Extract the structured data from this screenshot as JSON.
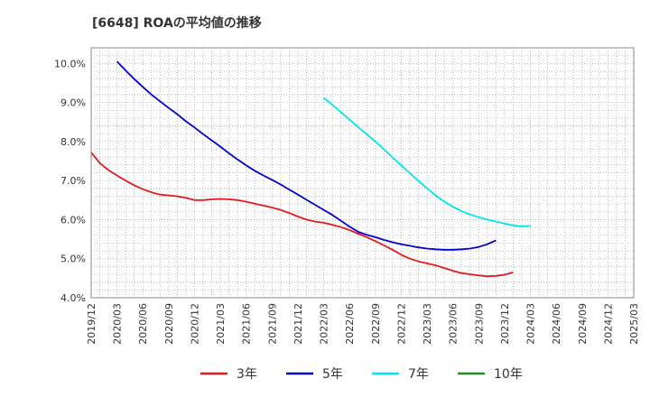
{
  "chart_data": {
    "type": "line",
    "title": "[6648]  ROAの平均値の推移",
    "xlabel": "",
    "ylabel": "",
    "ylim": [
      4.0,
      10.4
    ],
    "y_ticks": [
      "4.0%",
      "5.0%",
      "6.0%",
      "7.0%",
      "8.0%",
      "9.0%",
      "10.0%"
    ],
    "y_tick_values": [
      4.0,
      5.0,
      6.0,
      7.0,
      8.0,
      9.0,
      10.0
    ],
    "x_ticks": [
      "2019/12",
      "2020/03",
      "2020/06",
      "2020/09",
      "2020/12",
      "2021/03",
      "2021/06",
      "2021/09",
      "2021/12",
      "2022/03",
      "2022/06",
      "2022/09",
      "2022/12",
      "2023/03",
      "2023/06",
      "2023/09",
      "2023/12",
      "2024/03",
      "2024/06",
      "2024/09",
      "2024/12",
      "2025/03"
    ],
    "grid": true,
    "legend_position": "bottom",
    "series": [
      {
        "name": "3年",
        "color": "#e31a1c",
        "start": "2019/12",
        "values": [
          7.72,
          7.45,
          7.27,
          7.13,
          7.0,
          6.88,
          6.78,
          6.7,
          6.64,
          6.62,
          6.6,
          6.56,
          6.5,
          6.5,
          6.52,
          6.53,
          6.52,
          6.5,
          6.46,
          6.41,
          6.36,
          6.31,
          6.25,
          6.17,
          6.08,
          6.0,
          5.95,
          5.92,
          5.87,
          5.81,
          5.73,
          5.64,
          5.55,
          5.45,
          5.34,
          5.23,
          5.1,
          5.0,
          4.93,
          4.88,
          4.83,
          4.76,
          4.69,
          4.63,
          4.6,
          4.57,
          4.55,
          4.56,
          4.59,
          4.65
        ]
      },
      {
        "name": "5年",
        "color": "#0000cc",
        "start": "2020/03",
        "values": [
          10.05,
          9.82,
          9.6,
          9.4,
          9.2,
          9.03,
          8.86,
          8.7,
          8.52,
          8.36,
          8.19,
          8.03,
          7.87,
          7.7,
          7.54,
          7.39,
          7.25,
          7.13,
          7.02,
          6.9,
          6.77,
          6.64,
          6.51,
          6.38,
          6.25,
          6.12,
          5.97,
          5.82,
          5.69,
          5.61,
          5.55,
          5.48,
          5.42,
          5.37,
          5.33,
          5.29,
          5.26,
          5.24,
          5.23,
          5.23,
          5.24,
          5.26,
          5.3,
          5.37,
          5.47
        ]
      },
      {
        "name": "7年",
        "color": "#00e5ee",
        "start": "2022/03",
        "values": [
          9.12,
          8.94,
          8.75,
          8.56,
          8.37,
          8.19,
          8.0,
          7.8,
          7.59,
          7.39,
          7.19,
          6.99,
          6.8,
          6.62,
          6.46,
          6.33,
          6.22,
          6.13,
          6.06,
          6.0,
          5.95,
          5.9,
          5.85,
          5.83,
          5.84
        ]
      },
      {
        "name": "10年",
        "color": "#228b22",
        "start": "2025/03",
        "values": []
      }
    ]
  }
}
